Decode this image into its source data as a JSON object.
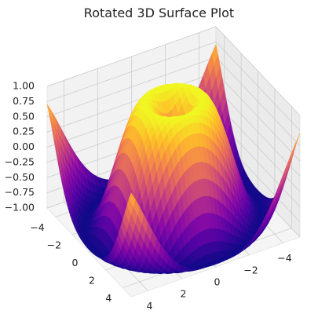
{
  "chart_data": {
    "type": "surface3d",
    "title": "Rotated 3D Surface Plot",
    "function": "z = sin(sqrt(x^2 + y^2))",
    "colormap": "plasma",
    "colormap_stops": [
      "#0d0887",
      "#5302a3",
      "#8b0aa5",
      "#b83289",
      "#db5c68",
      "#f48849",
      "#febd2a",
      "#f0f921"
    ],
    "view": {
      "elevation_deg": 30,
      "azimuth_deg": 60
    },
    "x_range": [
      -5,
      5
    ],
    "y_range": [
      -5,
      5
    ],
    "z_range": [
      -1,
      1
    ],
    "grid": true,
    "x_ticks": [
      "4",
      "2",
      "0",
      "−2",
      "−4"
    ],
    "y_ticks": [
      "−4",
      "−2",
      "0",
      "2",
      "4"
    ],
    "z_ticks": [
      "1.00",
      "0.75",
      "0.50",
      "0.25",
      "0.00",
      "−0.25",
      "−0.50",
      "−0.75",
      "−1.00"
    ]
  }
}
